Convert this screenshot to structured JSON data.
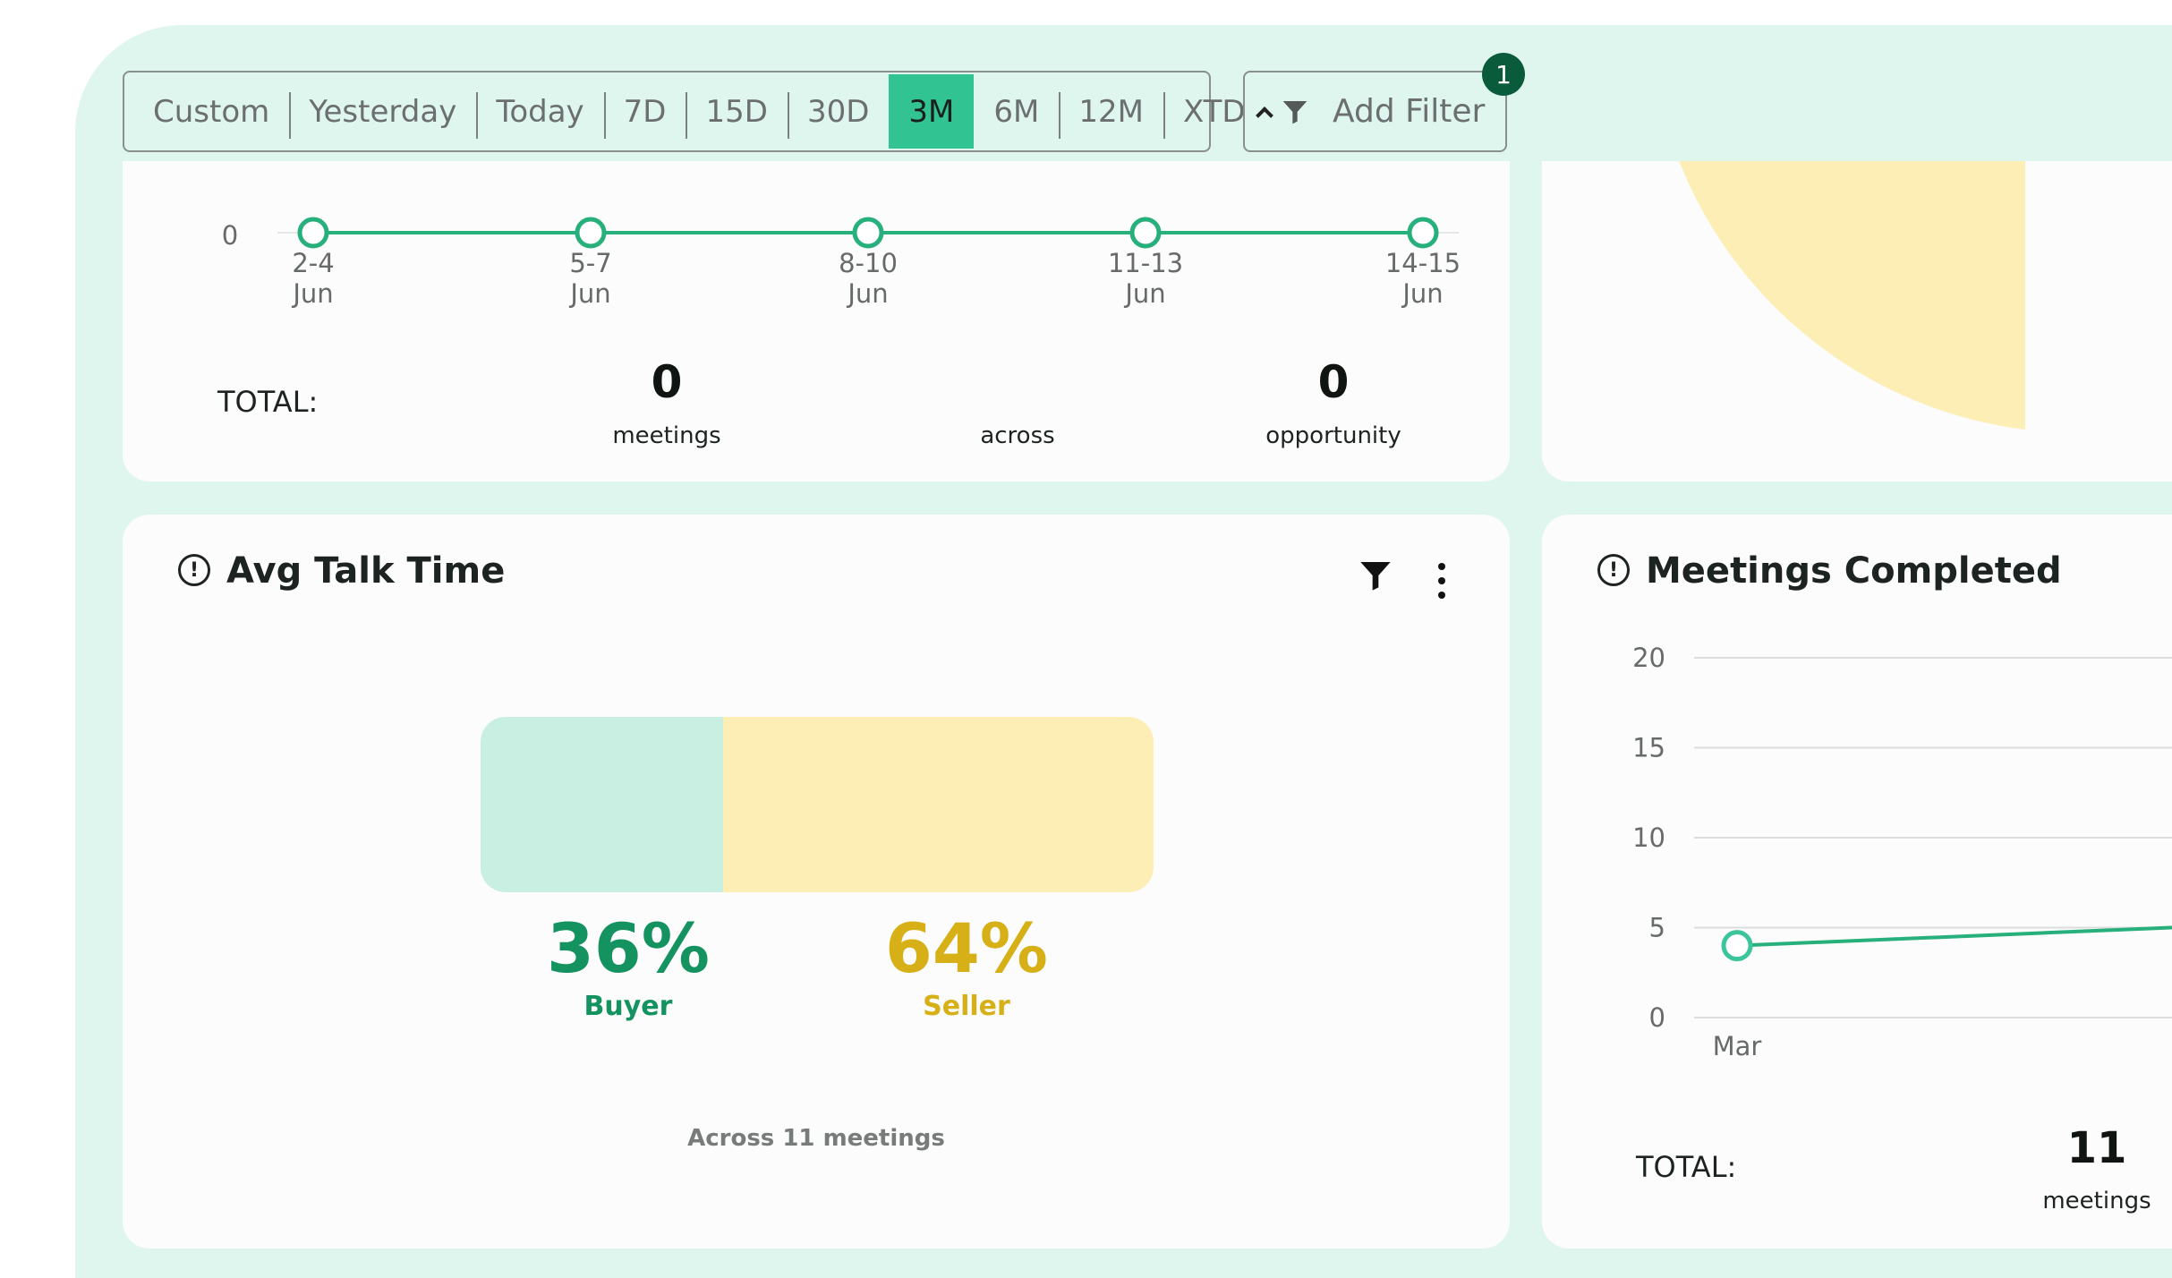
{
  "date_range": {
    "options": [
      "Custom",
      "Yesterday",
      "Today",
      "7D",
      "15D",
      "30D",
      "3M",
      "6M",
      "12M",
      "XTD"
    ],
    "selected": "3M"
  },
  "add_filter": {
    "label": "Add Filter",
    "badge_count": "1"
  },
  "meetings_timeline": {
    "chart_data": {
      "type": "line",
      "x": [
        "2-4 Jun",
        "5-7 Jun",
        "8-10 Jun",
        "11-13 Jun",
        "14-15 Jun"
      ],
      "values": [
        0,
        0,
        0,
        0,
        0
      ],
      "y_tick": "0",
      "series_color": "#27b07c"
    },
    "total_label": "TOTAL:",
    "meetings_value": "0",
    "meetings_label": "meetings",
    "across_label": "across",
    "opportunity_value": "0",
    "opportunity_label": "opportunity"
  },
  "pie_colors": [
    "#c8efe2",
    "#fdeeb5"
  ],
  "avg_talk_time": {
    "title": "Avg Talk Time",
    "buyer_pct": "36%",
    "buyer_label": "Buyer",
    "buyer_fraction": 0.36,
    "seller_pct": "64%",
    "seller_label": "Seller",
    "seller_fraction": 0.64,
    "footer": "Across 11 meetings",
    "colors": {
      "buyer": "#c8efe2",
      "seller": "#fdeeb5",
      "buyer_text": "#14925f",
      "seller_text": "#d7af17"
    }
  },
  "meetings_completed": {
    "title": "Meetings Completed",
    "chart_data": {
      "type": "line",
      "y_ticks": [
        "20",
        "15",
        "10",
        "5",
        "0"
      ],
      "ylim": [
        0,
        20
      ],
      "x": [
        "Mar"
      ],
      "values": [
        4
      ]
    },
    "total_label": "TOTAL:",
    "total_value": "11",
    "total_unit": "meetings"
  }
}
